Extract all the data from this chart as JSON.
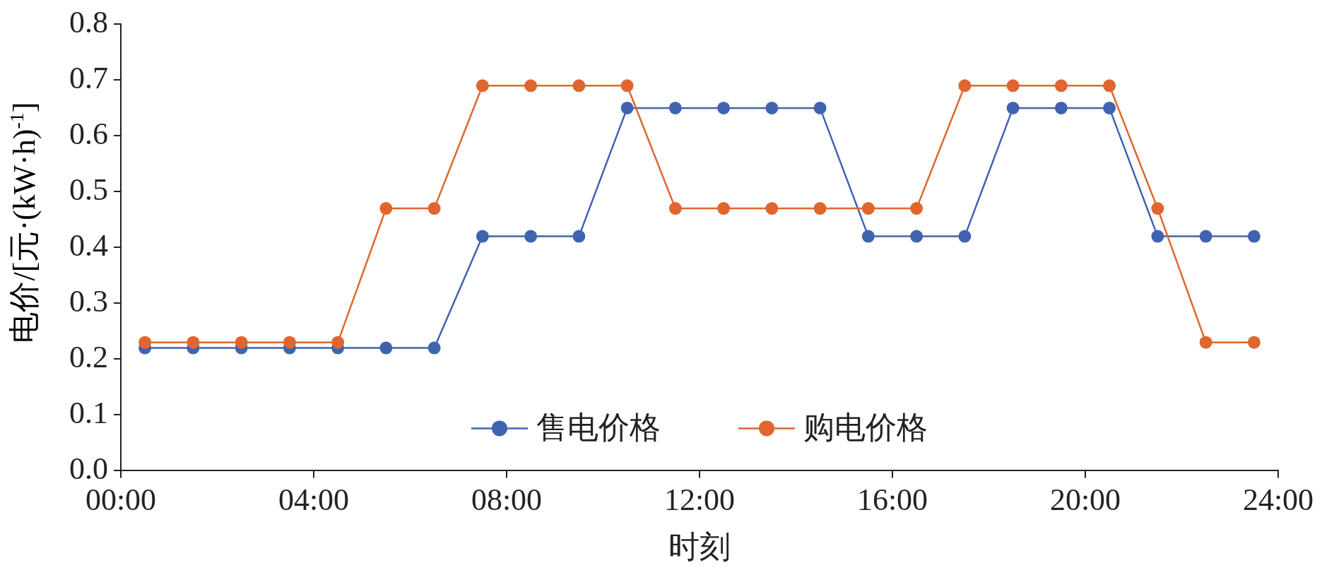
{
  "chart_data": {
    "type": "line",
    "xlabel": "时刻",
    "ylabel": "电价/[元·(kW·h)$^{-1}$]",
    "x": [
      0.5,
      1.5,
      2.5,
      3.5,
      4.5,
      5.5,
      6.5,
      7.5,
      8.5,
      9.5,
      10.5,
      11.5,
      12.5,
      13.5,
      14.5,
      15.5,
      16.5,
      17.5,
      18.5,
      19.5,
      20.5,
      21.5,
      22.5,
      23.5
    ],
    "series": [
      {
        "name": "售电价格",
        "color": "#4063b0",
        "values": [
          0.22,
          0.22,
          0.22,
          0.22,
          0.22,
          0.22,
          0.22,
          0.42,
          0.42,
          0.42,
          0.65,
          0.65,
          0.65,
          0.65,
          0.65,
          0.42,
          0.42,
          0.42,
          0.65,
          0.65,
          0.65,
          0.42,
          0.42,
          0.42
        ]
      },
      {
        "name": "购电价格",
        "color": "#e0662f",
        "values": [
          0.23,
          0.23,
          0.23,
          0.23,
          0.23,
          0.47,
          0.47,
          0.69,
          0.69,
          0.69,
          0.69,
          0.47,
          0.47,
          0.47,
          0.47,
          0.47,
          0.47,
          0.69,
          0.69,
          0.69,
          0.69,
          0.47,
          0.23,
          0.23
        ]
      }
    ],
    "xlim": [
      0,
      24
    ],
    "xticks": [
      {
        "value": 0,
        "label": "00:00"
      },
      {
        "value": 4,
        "label": "04:00"
      },
      {
        "value": 8,
        "label": "08:00"
      },
      {
        "value": 12,
        "label": "12:00"
      },
      {
        "value": 16,
        "label": "16:00"
      },
      {
        "value": 20,
        "label": "20:00"
      },
      {
        "value": 24,
        "label": "24:00"
      }
    ],
    "ylim": [
      0,
      0.8
    ],
    "yticks": [
      {
        "value": 0,
        "label": "0.0"
      },
      {
        "value": 0.1,
        "label": "0.1"
      },
      {
        "value": 0.2,
        "label": "0.2"
      },
      {
        "value": 0.3,
        "label": "0.3"
      },
      {
        "value": 0.4,
        "label": "0.4"
      },
      {
        "value": 0.5,
        "label": "0.5"
      },
      {
        "value": 0.6,
        "label": "0.6"
      },
      {
        "value": 0.7,
        "label": "0.7"
      },
      {
        "value": 0.8,
        "label": "0.8"
      }
    ],
    "grid": false,
    "legend": "bottom",
    "marker": "circle",
    "line_style": "solid"
  }
}
